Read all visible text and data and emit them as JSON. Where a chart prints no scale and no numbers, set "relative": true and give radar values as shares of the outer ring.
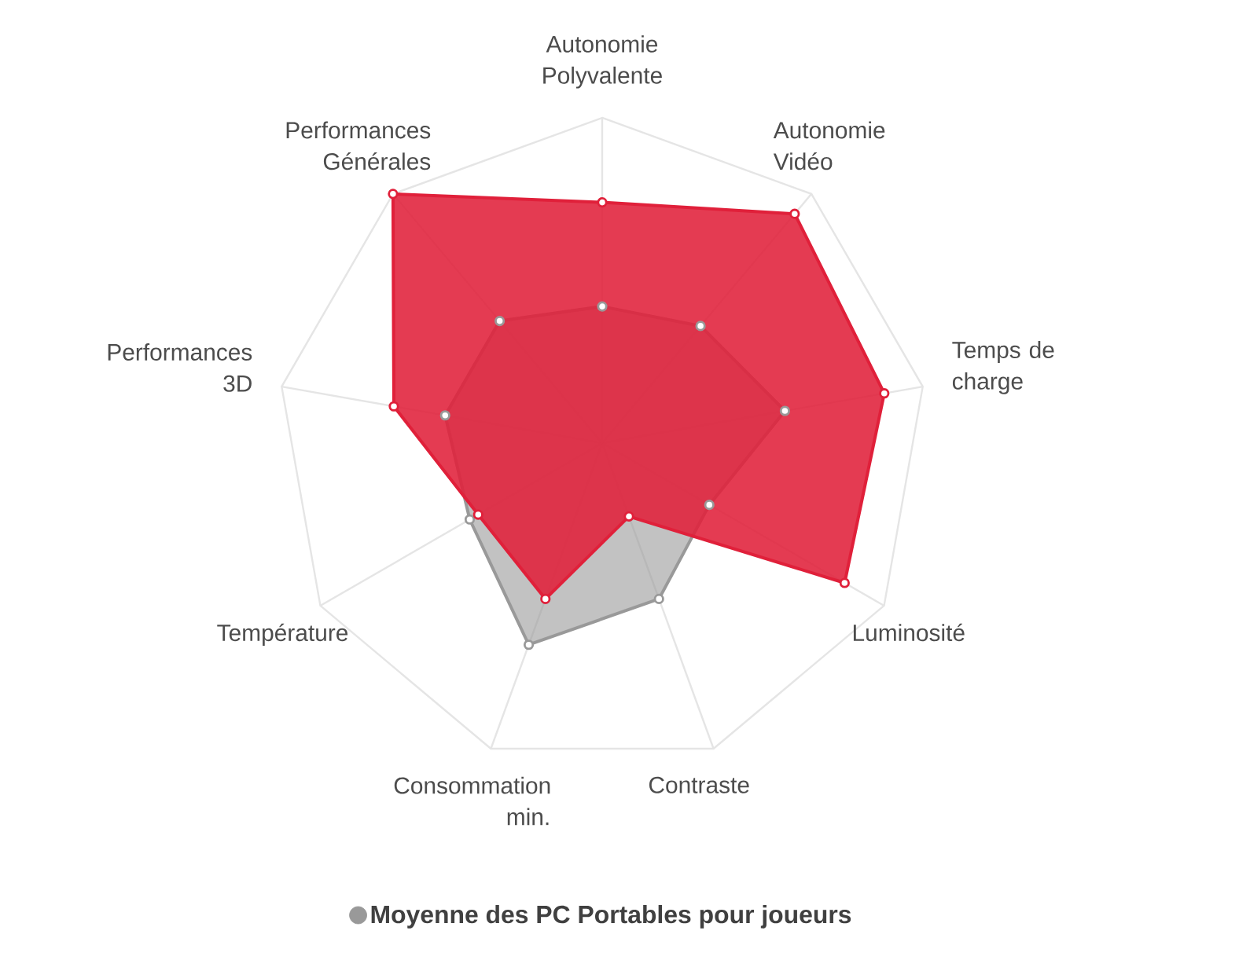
{
  "chart_data": {
    "type": "radar",
    "relative": true,
    "categories": [
      "Autonomie Polyvalente",
      "Autonomie Vidéo",
      "Temps de charge",
      "Luminosité",
      "Contraste",
      "Consommation min.",
      "Température",
      "Performances 3D",
      "Performances Générales"
    ],
    "series": [
      {
        "color": "#e0203a",
        "values": [
          0.74,
          0.92,
          0.88,
          0.86,
          0.24,
          0.51,
          0.44,
          0.65,
          1.0
        ]
      },
      {
        "name": "Moyenne des PC Portables pour joueurs",
        "color": "#999999",
        "values": [
          0.42,
          0.47,
          0.57,
          0.38,
          0.51,
          0.66,
          0.47,
          0.49,
          0.49
        ]
      }
    ],
    "grid": true,
    "legend": "bottom",
    "marker": "circle",
    "line_style": "solid"
  }
}
